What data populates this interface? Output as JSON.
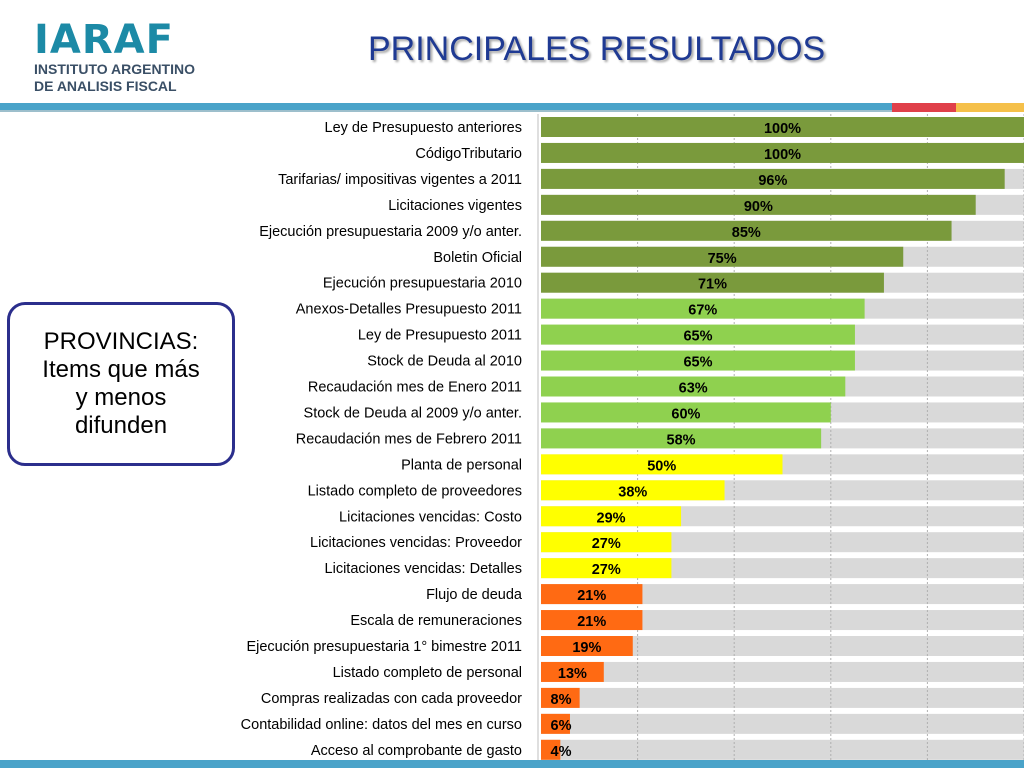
{
  "logo": {
    "mark": "IARAF",
    "line1": "INSTITUTO ARGENTINO",
    "line2": "DE ANALISIS FISCAL"
  },
  "title": "PRINCIPALES RESULTADOS",
  "callout": {
    "lines": [
      "PROVINCIAS:",
      "Items que más",
      "y menos",
      "difunden"
    ]
  },
  "colors": {
    "band_dark_green": "#7a9a3c",
    "band_light_green": "#8fd14f",
    "band_yellow": "#ffff00",
    "band_orange": "#ff6a13",
    "track": "#d9d9d9",
    "title": "#1f3a93",
    "bar_top_blue": "#4aa3c9",
    "bar_top_red": "#e0404a",
    "bar_top_yellow": "#f5c04a"
  },
  "chart_data": {
    "type": "bar",
    "orientation": "horizontal",
    "xlim": [
      0,
      100
    ],
    "grid": true,
    "categories": [
      "Ley de Presupuesto  anteriores",
      "CódigoTributario",
      "Tarifarias/ impositivas vigentes a 2011",
      "Licitaciones vigentes",
      "Ejecución presupuestaria 2009 y/o anter.",
      "Boletin Oficial",
      "Ejecución presupuestaria 2010",
      "Anexos-Detalles Presupuesto 2011",
      "Ley de Presupuesto  2011",
      "Stock de Deuda  al 2010",
      "Recaudación mes de Enero 2011",
      "Stock  de Deuda al 2009 y/o  anter.",
      "Recaudación mes de Febrero 2011",
      "Planta de personal",
      "Listado completo de proveedores",
      "Licitaciones vencidas: Costo",
      "Licitaciones vencidas: Proveedor",
      "Licitaciones vencidas: Detalles",
      "Flujo de deuda",
      "Escala de remuneraciones",
      "Ejecución presupuestaria 1° bimestre 2011",
      "Listado completo de personal",
      "Compras realizadas con cada proveedor",
      "Contabilidad online:  datos del mes en curso",
      "Acceso al comprobante  de gasto"
    ],
    "values": [
      100,
      100,
      96,
      90,
      85,
      75,
      71,
      67,
      65,
      65,
      63,
      60,
      58,
      50,
      38,
      29,
      27,
      27,
      21,
      21,
      19,
      13,
      8,
      6,
      4
    ],
    "value_labels": [
      "100%",
      "100%",
      "96%",
      "90%",
      "85%",
      "75%",
      "71%",
      "67%",
      "65%",
      "65%",
      "63%",
      "60%",
      "58%",
      "50%",
      "38%",
      "29%",
      "27%",
      "27%",
      "21%",
      "21%",
      "19%",
      "13%",
      "8%",
      "6%",
      "4%"
    ],
    "bands": [
      "dark_green",
      "dark_green",
      "dark_green",
      "dark_green",
      "dark_green",
      "dark_green",
      "dark_green",
      "light_green",
      "light_green",
      "light_green",
      "light_green",
      "light_green",
      "light_green",
      "yellow",
      "yellow",
      "yellow",
      "yellow",
      "yellow",
      "orange",
      "orange",
      "orange",
      "orange",
      "orange",
      "orange",
      "orange"
    ]
  }
}
